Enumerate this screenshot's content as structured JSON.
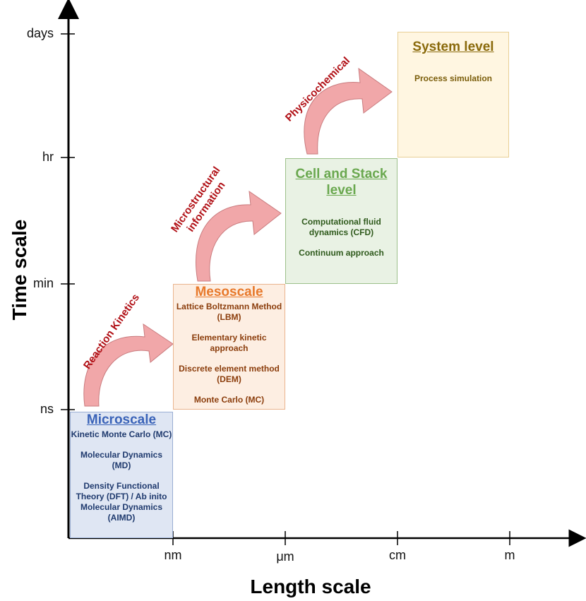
{
  "axes": {
    "y_title": "Time scale",
    "x_title": "Length scale",
    "y_ticks": [
      "days",
      "hr",
      "min",
      "ns"
    ],
    "x_ticks": [
      "nm",
      "μm",
      "cm",
      "m"
    ]
  },
  "levels": {
    "micro": {
      "title": "Microscale",
      "items": [
        "Kinetic Monte Carlo (MC)",
        "Molecular Dynamics (MD)",
        "Density Functional Theory (DFT) / Ab inito Molecular Dynamics (AIMD)"
      ],
      "color": "#3a63b8"
    },
    "meso": {
      "title": "Mesoscale",
      "items": [
        "Lattice Boltzmann Method (LBM)",
        "Elementary kinetic approach",
        "Discrete element method (DEM)",
        "Monte Carlo (MC)"
      ],
      "color": "#e8792b"
    },
    "cell": {
      "title": "Cell and Stack level",
      "items": [
        "Computational fluid dynamics (CFD)",
        "Continuum approach"
      ],
      "color": "#6aa84f"
    },
    "system": {
      "title": "System level",
      "items": [
        "Process simulation"
      ],
      "color": "#8a6a0c"
    }
  },
  "transitions": [
    "Reaction Kinetics",
    "Microstructural information",
    "Physicochemical"
  ],
  "colors": {
    "arrow_fill": "#f1a7a9",
    "arrow_stroke": "#c97b7e",
    "label": "#b11016"
  }
}
